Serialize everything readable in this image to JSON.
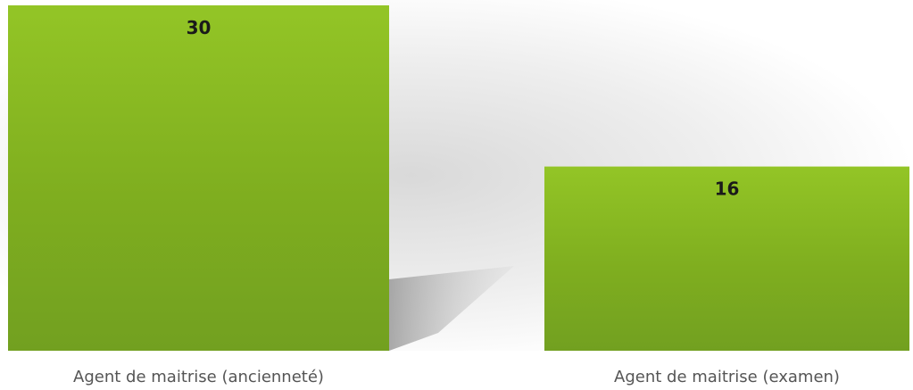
{
  "chart_data": {
    "type": "bar",
    "categories": [
      "Agent de maitrise (ancienneté)",
      "Agent de maitrise (examen)"
    ],
    "values": [
      30,
      16
    ],
    "ylim": [
      0,
      30
    ],
    "title": "",
    "xlabel": "",
    "ylabel": "",
    "grid": false,
    "legend": "none",
    "data_labels": true,
    "bar_color": "#7fae1f",
    "bar_color_light": "#93c526",
    "bar_color_dark": "#72a020",
    "label_color": "#1a1a1a",
    "category_label_color": "#555555"
  }
}
